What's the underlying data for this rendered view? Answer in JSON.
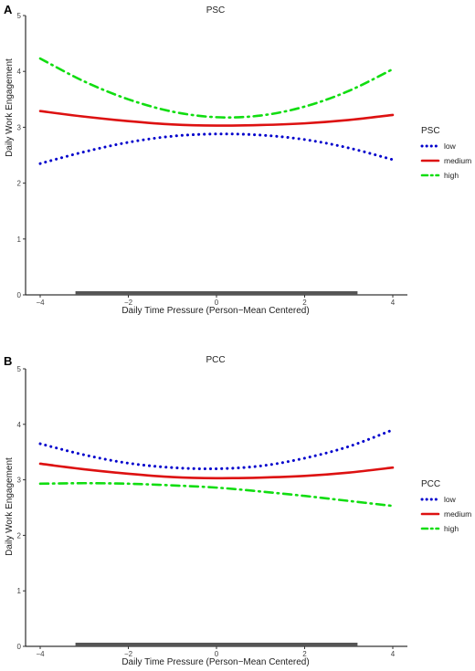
{
  "chart_data": [
    {
      "panel": "A",
      "type": "line",
      "title": "PSC",
      "xlabel": "Daily Time Pressure (Person−Mean Centered)",
      "ylabel": "Daily Work Engagement",
      "xlim": [
        -4,
        4
      ],
      "ylim": [
        0,
        5
      ],
      "xticks": [
        "−4",
        "−2",
        "0",
        "2",
        "4"
      ],
      "yticks": [
        "0",
        "1",
        "2",
        "3",
        "4",
        "5"
      ],
      "grid": false,
      "legend": {
        "title": "PSC",
        "position": "right"
      },
      "rug": {
        "from": -3.2,
        "to": 3.2
      },
      "x": [
        -4,
        -3,
        -2,
        -1,
        0,
        1,
        2,
        3,
        4
      ],
      "series": [
        {
          "name": "low",
          "color": "#0000cc",
          "dash": "dotted",
          "values": [
            2.35,
            2.56,
            2.73,
            2.84,
            2.88,
            2.86,
            2.78,
            2.63,
            2.42
          ]
        },
        {
          "name": "medium",
          "color": "#dd1111",
          "dash": "solid",
          "values": [
            3.29,
            3.19,
            3.11,
            3.05,
            3.03,
            3.04,
            3.07,
            3.13,
            3.22
          ]
        },
        {
          "name": "high",
          "color": "#11dd11",
          "dash": "dotdash",
          "values": [
            4.23,
            3.82,
            3.5,
            3.28,
            3.18,
            3.21,
            3.37,
            3.65,
            4.04
          ]
        }
      ]
    },
    {
      "panel": "B",
      "type": "line",
      "title": "PCC",
      "xlabel": "Daily Time Pressure (Person−Mean Centered)",
      "ylabel": "Daily Work Engagement",
      "xlim": [
        -4,
        4
      ],
      "ylim": [
        0,
        5
      ],
      "xticks": [
        "−4",
        "−2",
        "0",
        "2",
        "4"
      ],
      "yticks": [
        "0",
        "1",
        "2",
        "3",
        "4",
        "5"
      ],
      "grid": false,
      "legend": {
        "title": "PCC",
        "position": "right"
      },
      "rug": {
        "from": -3.2,
        "to": 3.2
      },
      "x": [
        -4,
        -3,
        -2,
        -1,
        0,
        1,
        2,
        3,
        4
      ],
      "series": [
        {
          "name": "low",
          "color": "#0000cc",
          "dash": "dotted",
          "values": [
            3.65,
            3.45,
            3.3,
            3.22,
            3.2,
            3.25,
            3.39,
            3.6,
            3.9
          ]
        },
        {
          "name": "medium",
          "color": "#dd1111",
          "dash": "solid",
          "values": [
            3.29,
            3.19,
            3.11,
            3.05,
            3.03,
            3.04,
            3.07,
            3.13,
            3.22
          ]
        },
        {
          "name": "high",
          "color": "#11dd11",
          "dash": "dotdash",
          "values": [
            2.93,
            2.94,
            2.93,
            2.9,
            2.86,
            2.79,
            2.71,
            2.62,
            2.53
          ]
        }
      ]
    }
  ]
}
